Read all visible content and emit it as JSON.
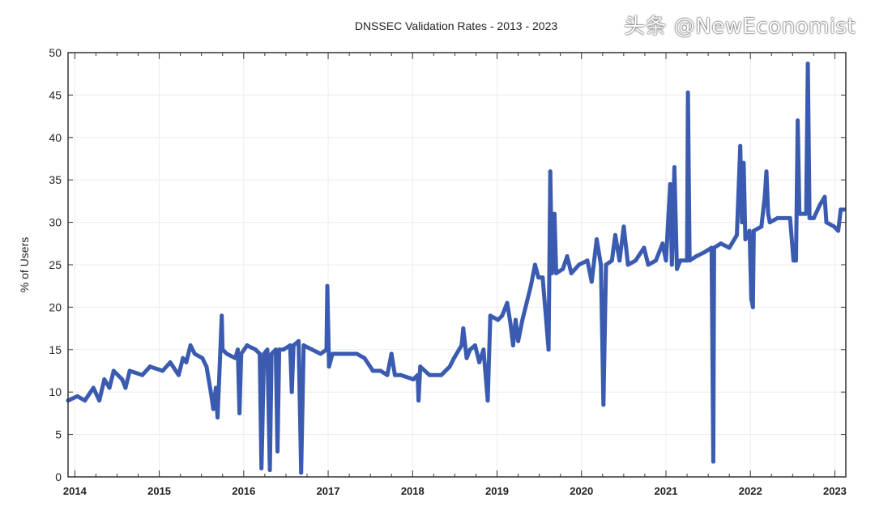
{
  "chart_data": {
    "type": "line",
    "title": "DNSSEC Validation Rates - 2013 - 2023",
    "xlabel": "",
    "ylabel": "% of Users",
    "xlim": [
      2013.92,
      2023.13
    ],
    "ylim": [
      0,
      50
    ],
    "x_ticks": [
      "2014",
      "2015",
      "2016",
      "2017",
      "2018",
      "2019",
      "2020",
      "2021",
      "2022",
      "2023"
    ],
    "y_ticks": [
      "0",
      "5",
      "10",
      "15",
      "20",
      "25",
      "30",
      "35",
      "40",
      "45",
      "50"
    ],
    "grid": true,
    "color": "#3a5bb0",
    "series": [
      {
        "x": [
          2013.92,
          2014.03,
          2014.12,
          2014.22,
          2014.29,
          2014.35,
          2014.41,
          2014.46,
          2014.56,
          2014.6,
          2014.65,
          2014.8,
          2014.89,
          2015.04,
          2015.13,
          2015.23,
          2015.28,
          2015.32,
          2015.37,
          2015.42,
          2015.51,
          2015.56,
          2015.61,
          2015.64,
          2015.67,
          2015.69,
          2015.72,
          2015.74,
          2015.75,
          2015.8,
          2015.9,
          2015.93,
          2015.95,
          2015.97,
          2016.04,
          2016.14,
          2016.19,
          2016.21,
          2016.22,
          2016.24,
          2016.28,
          2016.31,
          2016.33,
          2016.38,
          2016.4,
          2016.42,
          2016.47,
          2016.55,
          2016.57,
          2016.59,
          2016.65,
          2016.68,
          2016.71,
          2016.81,
          2016.91,
          2016.98,
          2016.99,
          2017.01,
          2017.05,
          2017.19,
          2017.34,
          2017.43,
          2017.53,
          2017.62,
          2017.7,
          2017.75,
          2017.79,
          2017.86,
          2018.01,
          2018.06,
          2018.07,
          2018.09,
          2018.2,
          2018.34,
          2018.44,
          2018.49,
          2018.58,
          2018.6,
          2018.64,
          2018.68,
          2018.74,
          2018.79,
          2018.84,
          2018.89,
          2018.92,
          2019.01,
          2019.06,
          2019.12,
          2019.16,
          2019.19,
          2019.22,
          2019.25,
          2019.3,
          2019.35,
          2019.4,
          2019.45,
          2019.49,
          2019.54,
          2019.61,
          2019.63,
          2019.65,
          2019.68,
          2019.7,
          2019.78,
          2019.83,
          2019.88,
          2019.97,
          2020.07,
          2020.12,
          2020.18,
          2020.23,
          2020.26,
          2020.29,
          2020.36,
          2020.4,
          2020.45,
          2020.5,
          2020.55,
          2020.64,
          2020.74,
          2020.79,
          2020.88,
          2020.96,
          2021.0,
          2021.05,
          2021.07,
          2021.1,
          2021.13,
          2021.17,
          2021.25,
          2021.26,
          2021.28,
          2021.36,
          2021.46,
          2021.54,
          2021.56,
          2021.57,
          2021.65,
          2021.75,
          2021.84,
          2021.88,
          2021.9,
          2021.92,
          2021.94,
          2021.99,
          2022.01,
          2022.03,
          2022.04,
          2022.13,
          2022.17,
          2022.19,
          2022.21,
          2022.23,
          2022.32,
          2022.47,
          2022.51,
          2022.54,
          2022.56,
          2022.58,
          2022.66,
          2022.68,
          2022.7,
          2022.75,
          2022.82,
          2022.88,
          2022.9,
          2022.99,
          2023.04,
          2023.07,
          2023.11
        ],
        "y": [
          9,
          9.5,
          9,
          10.5,
          9,
          11.5,
          10.5,
          12.5,
          11.5,
          10.5,
          12.5,
          12,
          13,
          12.5,
          13.5,
          12,
          14,
          13.5,
          15.5,
          14.5,
          14,
          13,
          10,
          8,
          10.5,
          7,
          14,
          19,
          15,
          14.5,
          14,
          15,
          7.5,
          14.5,
          15.5,
          15,
          14.5,
          1,
          5,
          14.5,
          15,
          0.8,
          14.5,
          15,
          3,
          15,
          15,
          15.5,
          10,
          15.5,
          16,
          0.5,
          15.5,
          15,
          14.5,
          15,
          22.5,
          13,
          14.5,
          14.5,
          14.5,
          14,
          12.5,
          12.5,
          12,
          14.5,
          12,
          12,
          11.5,
          12,
          9,
          13,
          12,
          12,
          13,
          14,
          15.5,
          17.5,
          14,
          15,
          15.5,
          13.5,
          15,
          9,
          19,
          18.5,
          19,
          20.5,
          18,
          15.5,
          18.5,
          16,
          18.5,
          20.5,
          22.5,
          25,
          23.5,
          23.5,
          15,
          36,
          24,
          31,
          24,
          24.5,
          26,
          24,
          25,
          25.5,
          23,
          28,
          25,
          8.5,
          25,
          25.5,
          28.5,
          25.5,
          29.5,
          25,
          25.5,
          27,
          25,
          25.5,
          27.5,
          25.5,
          34.5,
          25,
          36.5,
          24.5,
          25.5,
          25.5,
          45.3,
          25.5,
          26,
          26.5,
          27,
          1.8,
          27,
          27.5,
          27,
          28.5,
          39,
          30,
          37,
          28,
          29,
          21,
          20,
          29,
          29.5,
          33,
          36,
          31,
          30,
          30.5,
          30.5,
          25.5,
          25.5,
          42,
          31,
          31,
          48.7,
          30.5,
          30.5,
          32,
          33,
          30,
          29.5,
          29,
          31.5,
          31.5
        ]
      }
    ]
  },
  "watermark": "头条 @NewEconomist"
}
